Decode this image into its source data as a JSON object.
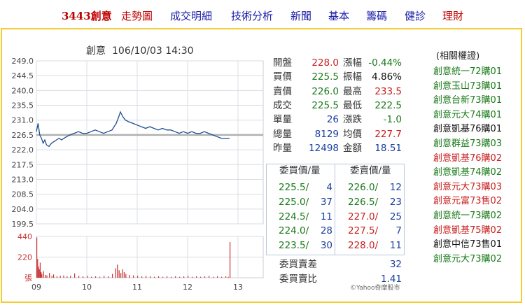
{
  "nav": {
    "stock": "3443創意",
    "items": [
      "走勢圖",
      "成交明細",
      "技術分析",
      "新聞",
      "基本",
      "籌碼",
      "健診",
      "理財"
    ]
  },
  "chart": {
    "title": "創意",
    "datetime": "106/10/03 14:30",
    "watermark": "©Yahoo奇摩股市"
  },
  "chart_data": {
    "type": "line",
    "x_ticks": [
      "09",
      "10",
      "11",
      "12",
      "13"
    ],
    "y_ticks": [
      "249.0",
      "244.5",
      "240.0",
      "235.5",
      "231.0",
      "226.5",
      "222.0",
      "217.5",
      "213.0",
      "208.5",
      "204.0",
      "199.5"
    ],
    "ylim": [
      199.5,
      249.0
    ],
    "reference_price": 226.5,
    "volume_ticks": [
      "440",
      "220",
      "張"
    ],
    "volume_ylim": [
      0,
      440
    ],
    "colors": {
      "price_line": "#1f4d8f",
      "reference_line": "#b0b0b0",
      "volume_bar": "#c83232",
      "grid": "#d9dde3"
    },
    "price_series": [
      {
        "t": 0,
        "v": 227.5
      },
      {
        "t": 2,
        "v": 230.0
      },
      {
        "t": 4,
        "v": 226.5
      },
      {
        "t": 6,
        "v": 225.5
      },
      {
        "t": 8,
        "v": 224.0
      },
      {
        "t": 10,
        "v": 225.0
      },
      {
        "t": 12,
        "v": 223.5
      },
      {
        "t": 15,
        "v": 223.0
      },
      {
        "t": 18,
        "v": 224.0
      },
      {
        "t": 21,
        "v": 224.5
      },
      {
        "t": 24,
        "v": 225.0
      },
      {
        "t": 27,
        "v": 225.5
      },
      {
        "t": 30,
        "v": 225.0
      },
      {
        "t": 33,
        "v": 225.5
      },
      {
        "t": 36,
        "v": 226.0
      },
      {
        "t": 40,
        "v": 226.5
      },
      {
        "t": 45,
        "v": 227.0
      },
      {
        "t": 50,
        "v": 227.5
      },
      {
        "t": 55,
        "v": 227.0
      },
      {
        "t": 60,
        "v": 227.0
      },
      {
        "t": 65,
        "v": 227.5
      },
      {
        "t": 70,
        "v": 228.0
      },
      {
        "t": 75,
        "v": 227.5
      },
      {
        "t": 80,
        "v": 227.0
      },
      {
        "t": 85,
        "v": 227.5
      },
      {
        "t": 90,
        "v": 228.0
      },
      {
        "t": 95,
        "v": 230.0
      },
      {
        "t": 98,
        "v": 232.0
      },
      {
        "t": 100,
        "v": 233.5
      },
      {
        "t": 103,
        "v": 232.0
      },
      {
        "t": 106,
        "v": 231.0
      },
      {
        "t": 110,
        "v": 230.5
      },
      {
        "t": 115,
        "v": 230.0
      },
      {
        "t": 120,
        "v": 229.5
      },
      {
        "t": 125,
        "v": 229.0
      },
      {
        "t": 130,
        "v": 228.5
      },
      {
        "t": 135,
        "v": 229.0
      },
      {
        "t": 140,
        "v": 228.5
      },
      {
        "t": 145,
        "v": 228.0
      },
      {
        "t": 150,
        "v": 228.5
      },
      {
        "t": 155,
        "v": 228.0
      },
      {
        "t": 160,
        "v": 228.0
      },
      {
        "t": 165,
        "v": 227.5
      },
      {
        "t": 170,
        "v": 227.0
      },
      {
        "t": 175,
        "v": 227.5
      },
      {
        "t": 180,
        "v": 227.0
      },
      {
        "t": 185,
        "v": 227.5
      },
      {
        "t": 190,
        "v": 227.0
      },
      {
        "t": 195,
        "v": 227.0
      },
      {
        "t": 200,
        "v": 227.5
      },
      {
        "t": 205,
        "v": 227.0
      },
      {
        "t": 210,
        "v": 226.5
      },
      {
        "t": 215,
        "v": 226.0
      },
      {
        "t": 220,
        "v": 225.5
      },
      {
        "t": 225,
        "v": 225.5
      },
      {
        "t": 230,
        "v": 225.5
      }
    ],
    "volume_series": [
      {
        "t": 0,
        "v": 430
      },
      {
        "t": 1,
        "v": 200
      },
      {
        "t": 2,
        "v": 120
      },
      {
        "t": 3,
        "v": 90
      },
      {
        "t": 4,
        "v": 160
      },
      {
        "t": 5,
        "v": 60
      },
      {
        "t": 6,
        "v": 40
      },
      {
        "t": 8,
        "v": 70
      },
      {
        "t": 10,
        "v": 30
      },
      {
        "t": 12,
        "v": 25
      },
      {
        "t": 15,
        "v": 50
      },
      {
        "t": 18,
        "v": 20
      },
      {
        "t": 20,
        "v": 35
      },
      {
        "t": 24,
        "v": 15
      },
      {
        "t": 28,
        "v": 20
      },
      {
        "t": 32,
        "v": 25
      },
      {
        "t": 36,
        "v": 15
      },
      {
        "t": 40,
        "v": 20
      },
      {
        "t": 45,
        "v": 45
      },
      {
        "t": 50,
        "v": 20
      },
      {
        "t": 55,
        "v": 15
      },
      {
        "t": 60,
        "v": 20
      },
      {
        "t": 65,
        "v": 10
      },
      {
        "t": 70,
        "v": 15
      },
      {
        "t": 75,
        "v": 10
      },
      {
        "t": 80,
        "v": 20
      },
      {
        "t": 85,
        "v": 15
      },
      {
        "t": 90,
        "v": 40
      },
      {
        "t": 94,
        "v": 100
      },
      {
        "t": 96,
        "v": 140
      },
      {
        "t": 98,
        "v": 80
      },
      {
        "t": 100,
        "v": 50
      },
      {
        "t": 102,
        "v": 90
      },
      {
        "t": 104,
        "v": 60
      },
      {
        "t": 106,
        "v": 40
      },
      {
        "t": 110,
        "v": 30
      },
      {
        "t": 115,
        "v": 25
      },
      {
        "t": 120,
        "v": 20
      },
      {
        "t": 125,
        "v": 15
      },
      {
        "t": 130,
        "v": 20
      },
      {
        "t": 135,
        "v": 15
      },
      {
        "t": 140,
        "v": 10
      },
      {
        "t": 145,
        "v": 15
      },
      {
        "t": 150,
        "v": 10
      },
      {
        "t": 155,
        "v": 15
      },
      {
        "t": 160,
        "v": 10
      },
      {
        "t": 165,
        "v": 15
      },
      {
        "t": 170,
        "v": 10
      },
      {
        "t": 175,
        "v": 15
      },
      {
        "t": 180,
        "v": 20
      },
      {
        "t": 185,
        "v": 10
      },
      {
        "t": 190,
        "v": 15
      },
      {
        "t": 195,
        "v": 10
      },
      {
        "t": 200,
        "v": 15
      },
      {
        "t": 205,
        "v": 20
      },
      {
        "t": 210,
        "v": 10
      },
      {
        "t": 215,
        "v": 15
      },
      {
        "t": 220,
        "v": 10
      },
      {
        "t": 225,
        "v": 15
      },
      {
        "t": 228,
        "v": 10
      },
      {
        "t": 230,
        "v": 380
      }
    ]
  },
  "quote": {
    "rows": [
      {
        "l1": "開盤",
        "v1": "228.0",
        "c1": "red",
        "l2": "漲幅",
        "v2": "-0.44%",
        "c2": "green"
      },
      {
        "l1": "買價",
        "v1": "225.5",
        "c1": "green",
        "l2": "振幅",
        "v2": "4.86%",
        "c2": "black"
      },
      {
        "l1": "賣價",
        "v1": "226.0",
        "c1": "green",
        "l2": "最高",
        "v2": "233.5",
        "c2": "red"
      },
      {
        "l1": "成交",
        "v1": "225.5",
        "c1": "green",
        "l2": "最低",
        "v2": "222.5",
        "c2": "green"
      },
      {
        "l1": "單量",
        "v1": "26",
        "c1": "blue",
        "l2": "漲跌",
        "v2": "-1.0",
        "c2": "green"
      },
      {
        "l1": "總量",
        "v1": "8129",
        "c1": "blue",
        "l2": "均價",
        "v2": "227.7",
        "c2": "red"
      },
      {
        "l1": "昨量",
        "v1": "12498",
        "c1": "blue",
        "l2": "金額",
        "v2": "18.51",
        "c2": "blue"
      }
    ]
  },
  "orderbook": {
    "buy_header": "委買價/量",
    "sell_header": "委賣價/量",
    "buy": [
      {
        "price": "225.5/",
        "vol": "4",
        "color": "green"
      },
      {
        "price": "225.0/",
        "vol": "37",
        "color": "green"
      },
      {
        "price": "224.5/",
        "vol": "11",
        "color": "green"
      },
      {
        "price": "224.0/",
        "vol": "28",
        "color": "green"
      },
      {
        "price": "223.5/",
        "vol": "30",
        "color": "green"
      }
    ],
    "sell": [
      {
        "price": "226.0/",
        "vol": "12",
        "color": "green"
      },
      {
        "price": "226.5/",
        "vol": "23",
        "color": "green"
      },
      {
        "price": "227.0/",
        "vol": "25",
        "color": "red"
      },
      {
        "price": "227.5/",
        "vol": "7",
        "color": "red"
      },
      {
        "price": "228.0/",
        "vol": "11",
        "color": "red"
      }
    ],
    "diff_label": "委買賣差",
    "diff_value": "32",
    "ratio_label": "委買賣比",
    "ratio_value": "1.41"
  },
  "warrants": {
    "title": "(相關權證)",
    "items": [
      {
        "label": "創意統一72購01",
        "color": "green"
      },
      {
        "label": "創意玉山73購01",
        "color": "green"
      },
      {
        "label": "創意台新73購01",
        "color": "green"
      },
      {
        "label": "創意元大74購01",
        "color": "green"
      },
      {
        "label": "創意凱基76購01",
        "color": "black"
      },
      {
        "label": "創意群益73購03",
        "color": "green"
      },
      {
        "label": "創意凱基76購02",
        "color": "red"
      },
      {
        "label": "創意凱基74購02",
        "color": "green"
      },
      {
        "label": "創意元大73購03",
        "color": "red"
      },
      {
        "label": "創意元富73售02",
        "color": "red"
      },
      {
        "label": "創意統一73購02",
        "color": "green"
      },
      {
        "label": "創意凱基75購02",
        "color": "red"
      },
      {
        "label": "創意中信73售01",
        "color": "black"
      },
      {
        "label": "創意元大73購02",
        "color": "green"
      }
    ]
  }
}
